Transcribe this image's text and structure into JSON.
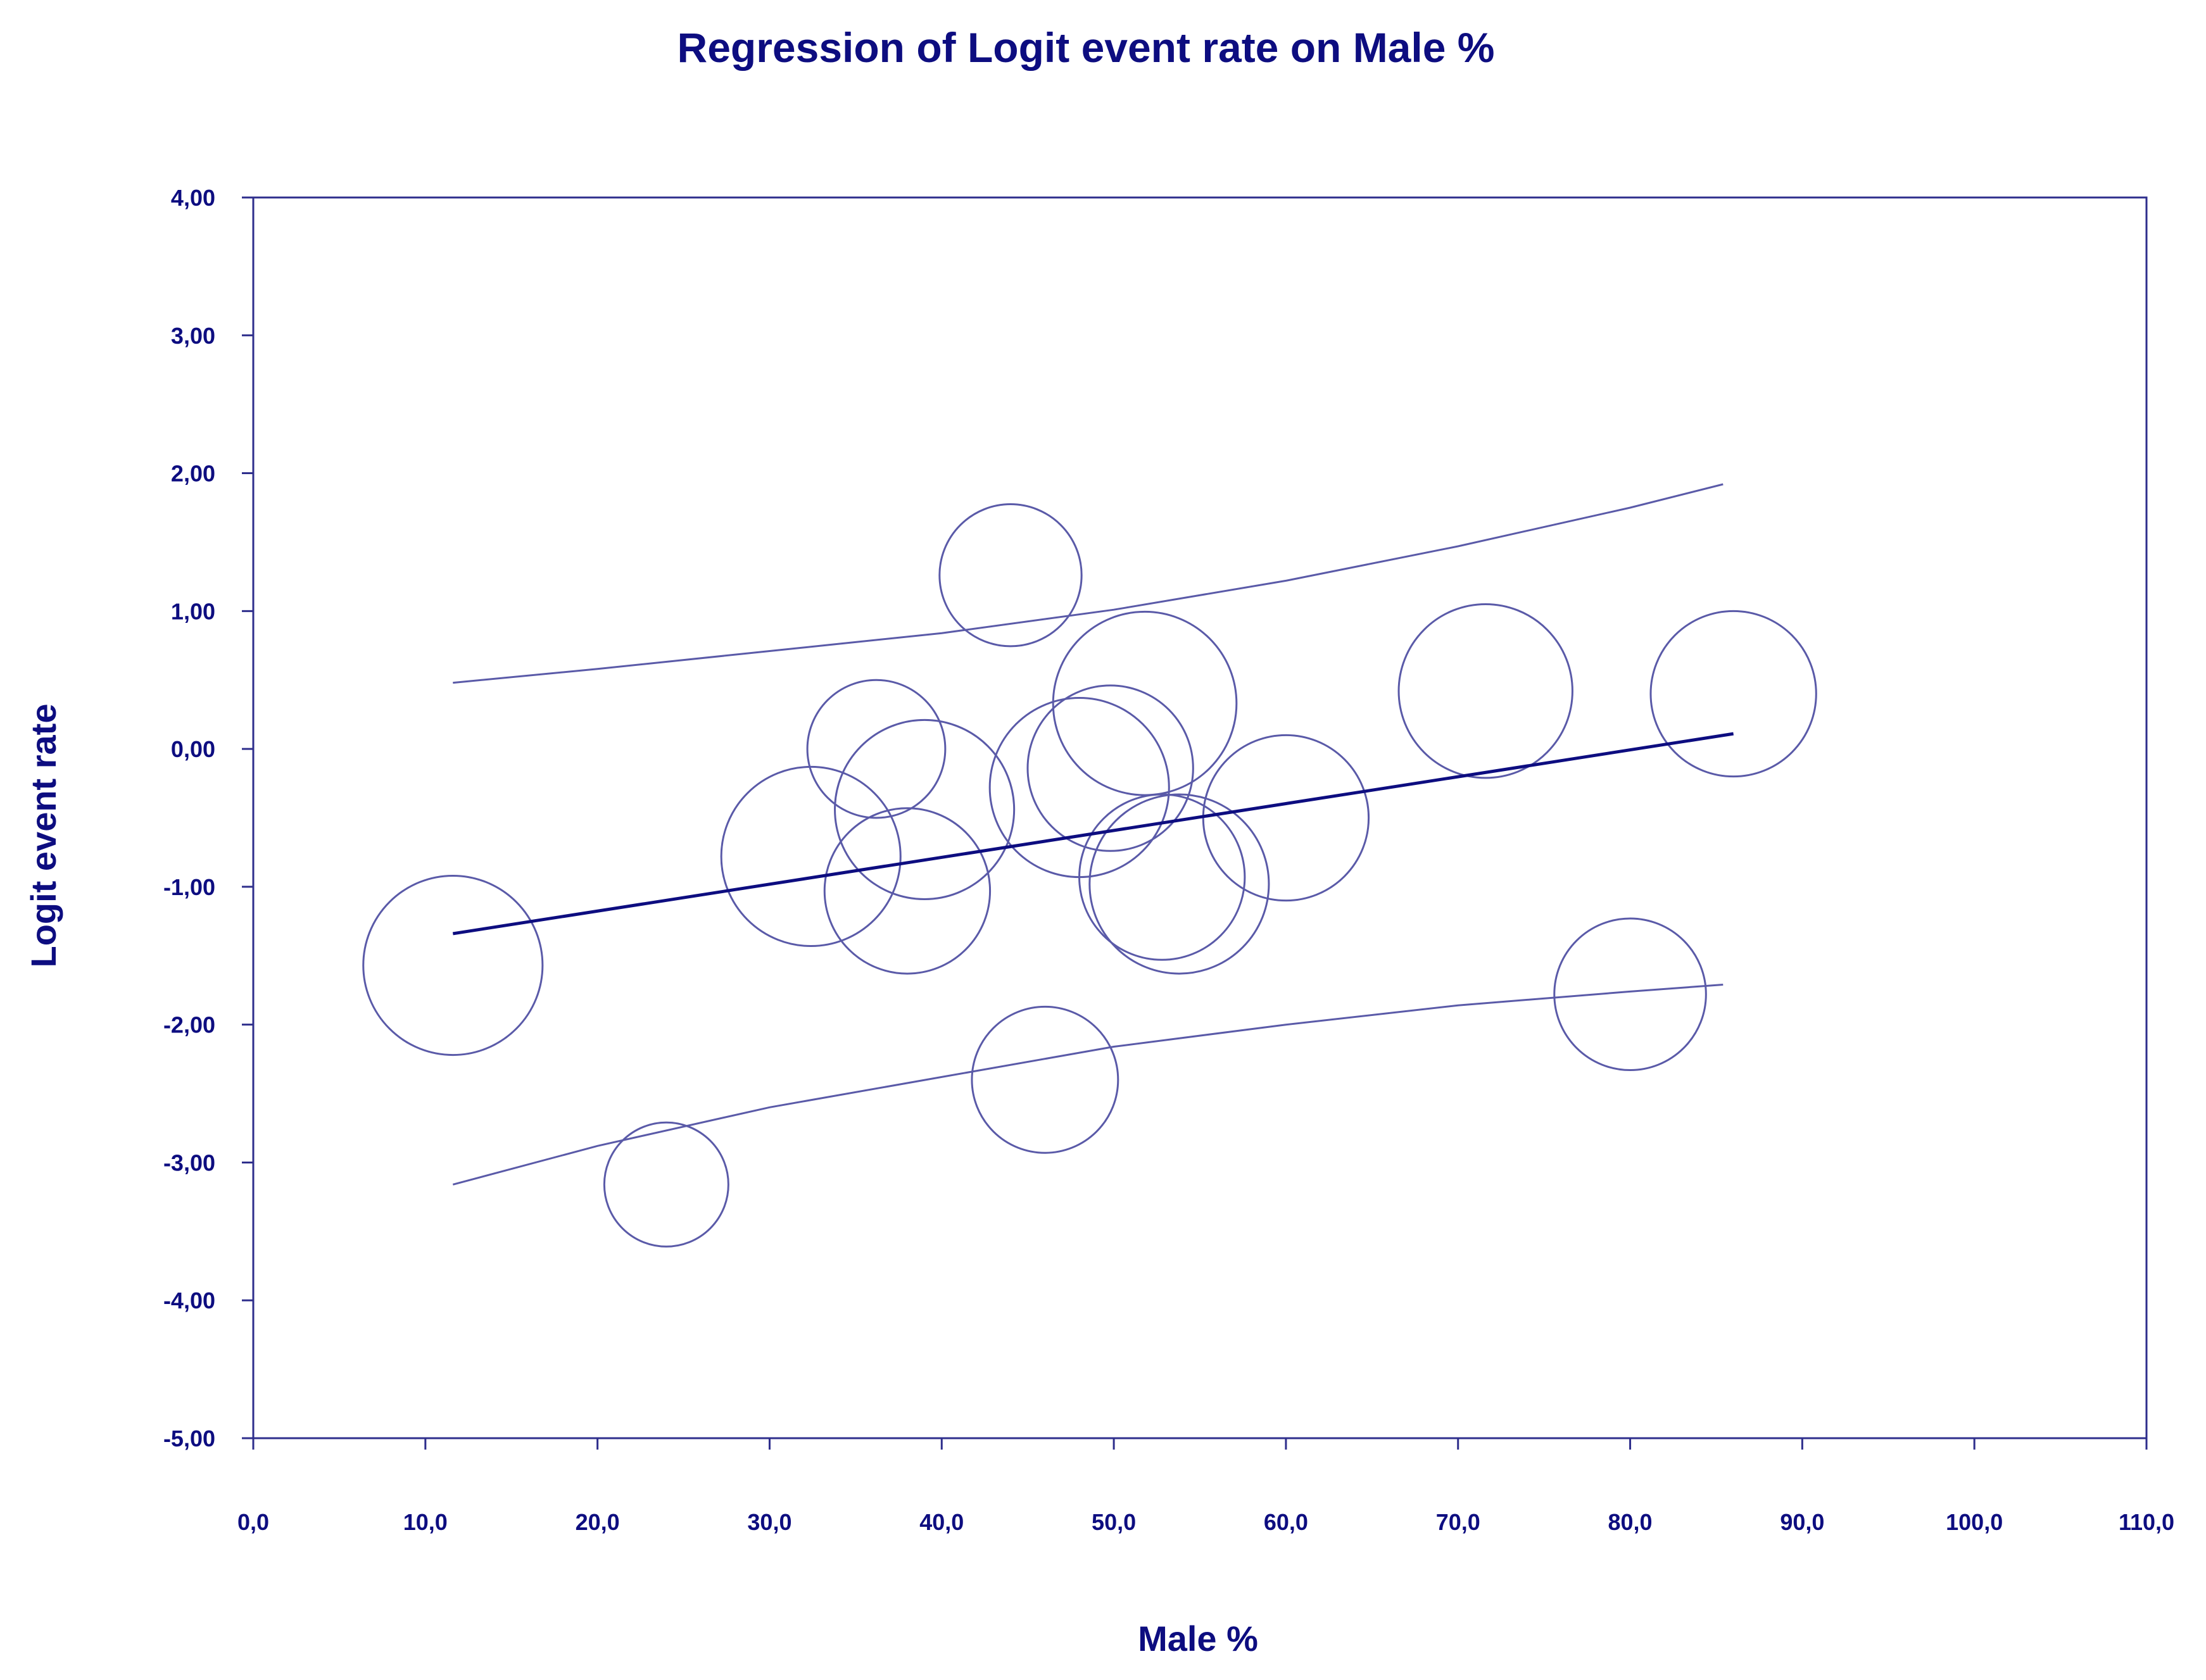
{
  "chart_data": {
    "type": "scatter",
    "title": "Regression of Logit event rate on Male %",
    "xlabel": "Male %",
    "ylabel": "Logit event rate",
    "xlim": [
      0,
      110
    ],
    "ylim": [
      -5,
      4
    ],
    "x_ticks": [
      "0,0",
      "10,0",
      "20,0",
      "30,0",
      "40,0",
      "50,0",
      "60,0",
      "70,0",
      "80,0",
      "90,0",
      "100,0",
      "110,0"
    ],
    "y_ticks": [
      "4,00",
      "3,00",
      "2,00",
      "1,00",
      "0,00",
      "-1,00",
      "-2,00",
      "-3,00",
      "-4,00",
      "-5,00"
    ],
    "grid": false,
    "colors": {
      "axis": "#2e2e8c",
      "text": "#0d0d80",
      "bubble": "#5a5aa8",
      "regression": "#0d0d80",
      "ci": "#5a5aa8"
    },
    "points": [
      {
        "x": 11.6,
        "y": -1.57,
        "weight": 1.3
      },
      {
        "x": 24.0,
        "y": -3.16,
        "weight": 0.9
      },
      {
        "x": 32.4,
        "y": -0.78,
        "weight": 1.3
      },
      {
        "x": 36.2,
        "y": 0.0,
        "weight": 1.0
      },
      {
        "x": 38.0,
        "y": -1.03,
        "weight": 1.2
      },
      {
        "x": 39.0,
        "y": -0.44,
        "weight": 1.3
      },
      {
        "x": 44.0,
        "y": 1.26,
        "weight": 1.03
      },
      {
        "x": 46.0,
        "y": -2.4,
        "weight": 1.06
      },
      {
        "x": 48.0,
        "y": -0.28,
        "weight": 1.3
      },
      {
        "x": 49.8,
        "y": -0.14,
        "weight": 1.2
      },
      {
        "x": 51.8,
        "y": 0.33,
        "weight": 1.33
      },
      {
        "x": 52.8,
        "y": -0.93,
        "weight": 1.2
      },
      {
        "x": 53.8,
        "y": -0.98,
        "weight": 1.3
      },
      {
        "x": 60.0,
        "y": -0.5,
        "weight": 1.2
      },
      {
        "x": 71.6,
        "y": 0.42,
        "weight": 1.26
      },
      {
        "x": 80.0,
        "y": -1.78,
        "weight": 1.1
      },
      {
        "x": 86.0,
        "y": 0.4,
        "weight": 1.2
      }
    ],
    "regression_line": {
      "x": [
        11.6,
        86.0
      ],
      "y": [
        -1.34,
        0.11
      ]
    },
    "ci_upper": {
      "x": [
        11.6,
        20,
        30,
        40,
        50,
        60,
        70,
        80,
        85.4
      ],
      "y": [
        0.48,
        0.58,
        0.71,
        0.84,
        1.01,
        1.22,
        1.47,
        1.75,
        1.92
      ]
    },
    "ci_lower": {
      "x": [
        11.6,
        20,
        30,
        40,
        50,
        60,
        70,
        80,
        85.4
      ],
      "y": [
        -3.16,
        -2.88,
        -2.6,
        -2.38,
        -2.16,
        -2.0,
        -1.86,
        -1.76,
        -1.71
      ]
    }
  }
}
